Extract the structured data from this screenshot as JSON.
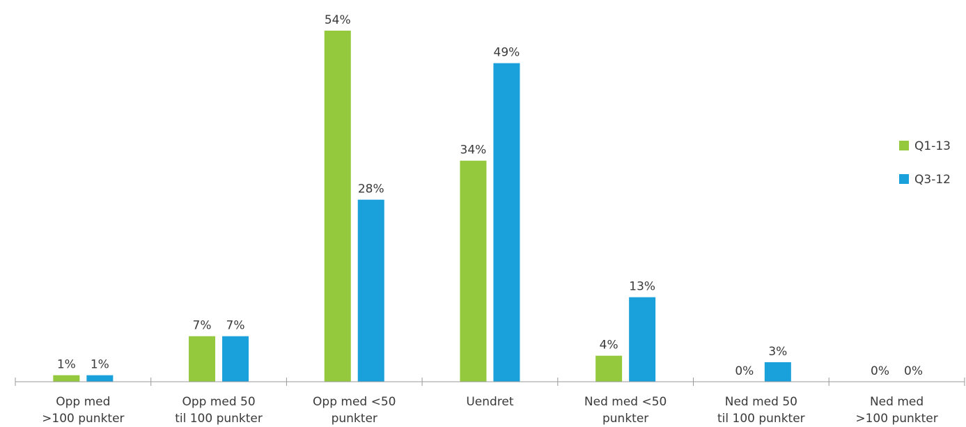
{
  "chart_data": {
    "type": "bar",
    "categories": [
      [
        "Opp med",
        ">100 punkter"
      ],
      [
        "Opp med 50",
        "til 100 punkter"
      ],
      [
        "Opp med <50",
        "punkter"
      ],
      [
        "Uendret"
      ],
      [
        "Ned med <50",
        "punkter"
      ],
      [
        "Ned med 50",
        "til 100 punkter"
      ],
      [
        "Ned med",
        ">100 punkter"
      ]
    ],
    "series": [
      {
        "name": "Q1-13",
        "color": "#94c83d",
        "values": [
          1,
          7,
          54,
          34,
          4,
          0,
          0
        ]
      },
      {
        "name": "Q3-12",
        "color": "#1aa0db",
        "values": [
          1,
          7,
          28,
          49,
          13,
          3,
          0
        ]
      }
    ],
    "value_suffix": "%",
    "ylim": [
      0,
      54
    ],
    "grid": false,
    "legend": "right",
    "axis_color": "#999999"
  }
}
